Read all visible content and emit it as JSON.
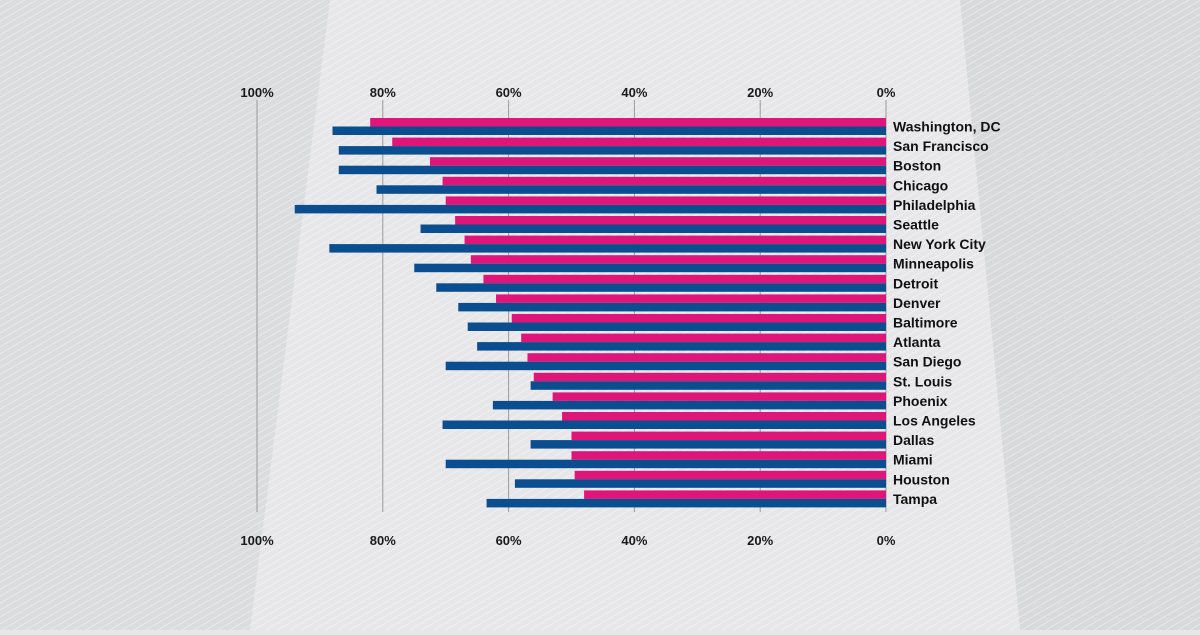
{
  "chart_data": {
    "type": "bar",
    "orientation": "horizontal",
    "direction": "right-to-left",
    "categories": [
      "Washington, DC",
      "San Francisco",
      "Boston",
      "Chicago",
      "Philadelphia",
      "Seattle",
      "New York City",
      "Minneapolis",
      "Detroit",
      "Denver",
      "Baltimore",
      "Atlanta",
      "San Diego",
      "St. Louis",
      "Phoenix",
      "Los Angeles",
      "Dallas",
      "Miami",
      "Houston",
      "Tampa"
    ],
    "series": [
      {
        "color": "#e0157a",
        "values": [
          82,
          78.5,
          72.5,
          70.5,
          70,
          68.5,
          67,
          66,
          64,
          62,
          59.5,
          58,
          57,
          56,
          53,
          51.5,
          50,
          50,
          49.5,
          48
        ]
      },
      {
        "color": "#0b4e8f",
        "values": [
          88,
          87,
          87,
          81,
          94,
          74,
          88.5,
          75,
          71.5,
          68,
          66.5,
          65,
          70,
          56.5,
          62.5,
          70.5,
          56.5,
          70,
          59,
          63.5
        ]
      }
    ],
    "xlim": [
      0,
      100
    ],
    "ticks": [
      "100%",
      "80%",
      "60%",
      "40%",
      "20%",
      "0%"
    ],
    "grid": true,
    "legend": "none",
    "title": "",
    "xlabel": "",
    "ylabel": ""
  }
}
